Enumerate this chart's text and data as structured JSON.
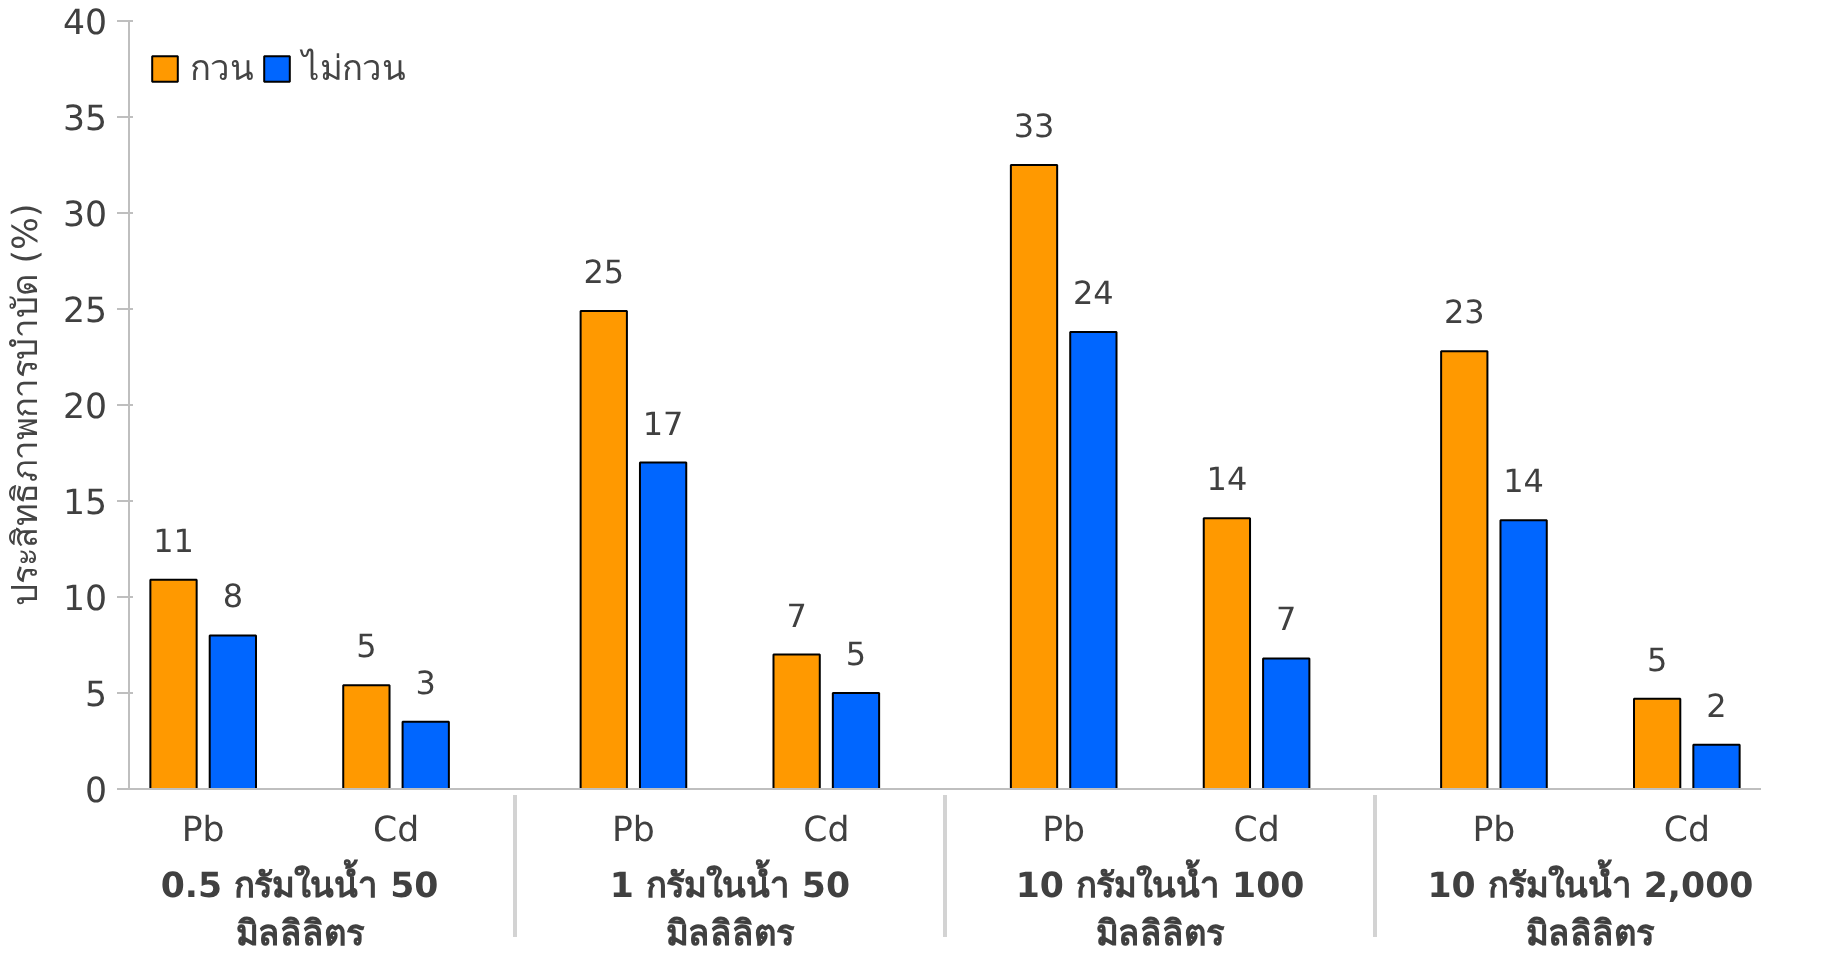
{
  "chart_data": {
    "type": "bar",
    "ylabel": "ประสิทธิภาพการบำบัด (%)",
    "categories": [
      "Pb",
      "Cd",
      "Pb",
      "Cd",
      "Pb",
      "Cd",
      "Pb",
      "Cd"
    ],
    "annotations": [
      "0.5 กรัมในน้ำ 50 มิลลิลิตร",
      "1 กรัมในน้ำ 50 มิลลิลิตร",
      "10 กรัมในน้ำ 100 มิลลิลิตร",
      "10 กรัมในน้ำ 2,000 มิลลิลิตร"
    ],
    "series": [
      {
        "name": "กวน",
        "color": "#ff9900",
        "values": [
          10.9,
          5.4,
          24.9,
          7.0,
          32.5,
          14.1,
          22.8,
          4.7
        ],
        "value_labels": [
          "11",
          "5",
          "25",
          "7",
          "33",
          "14",
          "23",
          "5"
        ]
      },
      {
        "name": "ไม่กวน",
        "color": "#0066ff",
        "values": [
          8.0,
          3.5,
          17.0,
          5.0,
          23.8,
          6.8,
          14.0,
          2.3
        ],
        "value_labels": [
          "8",
          "3",
          "17",
          "5",
          "24",
          "7",
          "14",
          "2"
        ]
      }
    ],
    "ylim": [
      0,
      40
    ],
    "yticks": [
      0,
      5,
      10,
      15,
      20,
      25,
      30,
      35,
      40
    ],
    "grid": false,
    "legend": "top left"
  }
}
